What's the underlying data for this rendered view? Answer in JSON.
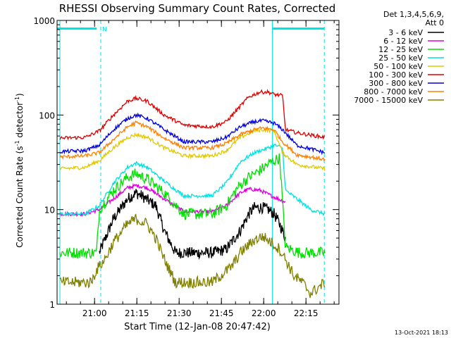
{
  "chart_data": {
    "type": "line",
    "title": "RHESSI Observing Summary Count Rates, Corrected",
    "xlabel": "Start Time (12-Jan-08 20:47:42)",
    "ylabel_main": "Corrected Count Rate (s",
    "ylabel_sup1": "-1",
    "ylabel_mid": " detector",
    "ylabel_sup2": "-1",
    "ylabel_end": ")",
    "y_scale": "log",
    "ylim": [
      1,
      1000
    ],
    "xlim_minutes": [
      0,
      100
    ],
    "x_ticks": [
      {
        "t": 13.3,
        "label": "21:00"
      },
      {
        "t": 28.3,
        "label": "21:15"
      },
      {
        "t": 43.3,
        "label": "21:30"
      },
      {
        "t": 58.3,
        "label": "21:45"
      },
      {
        "t": 73.3,
        "label": "22:00"
      },
      {
        "t": 88.3,
        "label": "22:15"
      }
    ],
    "y_ticks": [
      {
        "v": 1,
        "label": "1"
      },
      {
        "v": 10,
        "label": "10"
      },
      {
        "v": 100,
        "label": "100"
      },
      {
        "v": 1000,
        "label": "1000"
      }
    ],
    "legend_header": [
      "Det 1,3,4,5,6,9,",
      "Att 0"
    ],
    "legend_position": "right",
    "night_marker": {
      "label": "N",
      "t_end": 15.5,
      "level": 820
    },
    "saa_marker": {
      "t_start": 76.4,
      "t_end": 94.8,
      "level": 820
    },
    "vertical_lines_dashed": [
      15.5,
      94.8
    ],
    "vertical_lines_solid": [
      1.0,
      76.4
    ],
    "series": [
      {
        "name": "3 - 6 keV",
        "color": "#000000",
        "x": [
          15,
          20,
          25,
          28,
          30,
          35,
          38,
          42,
          48,
          55,
          60,
          65,
          68,
          70,
          73,
          75,
          77,
          79,
          81
        ],
        "y": [
          3.5,
          8,
          13,
          15,
          14,
          11,
          6,
          3.5,
          3.5,
          3.5,
          3.8,
          6,
          9,
          10.5,
          10.5,
          10,
          9,
          7,
          5
        ]
      },
      {
        "name": "6 - 12 keV",
        "color": "#e000e0",
        "x": [
          1,
          10,
          15,
          20,
          25,
          28,
          32,
          38,
          45,
          55,
          60,
          65,
          68,
          72,
          76,
          81
        ],
        "y": [
          9,
          9,
          10,
          13,
          17,
          18,
          17,
          13,
          9.5,
          9.5,
          11,
          15,
          16.5,
          16,
          14,
          12
        ]
      },
      {
        "name": "12 - 25 keV",
        "color": "#00e000",
        "x": [
          1,
          14,
          15,
          20,
          25,
          28,
          32,
          38,
          45,
          55,
          60,
          64,
          68,
          72,
          76,
          79,
          81,
          86,
          95
        ],
        "y": [
          3.5,
          3.5,
          10,
          16,
          22,
          24,
          21,
          15,
          9,
          9,
          11,
          17,
          22,
          26,
          32,
          35,
          4,
          3.5,
          3.5
        ]
      },
      {
        "name": "25 - 50 keV",
        "color": "#00e0e0",
        "x": [
          1,
          10,
          15,
          20,
          25,
          28,
          32,
          38,
          45,
          55,
          60,
          65,
          70,
          75,
          77,
          80,
          81,
          85,
          90,
          95
        ],
        "y": [
          9,
          9,
          11,
          19,
          28,
          31,
          28,
          20,
          14,
          14,
          19,
          32,
          40,
          45,
          48,
          45,
          16,
          13,
          10,
          9
        ]
      },
      {
        "name": "50 - 100 keV",
        "color": "#e0c800",
        "x": [
          1,
          10,
          15,
          20,
          25,
          28,
          32,
          38,
          45,
          55,
          60,
          65,
          70,
          73,
          77,
          80,
          85,
          95
        ],
        "y": [
          27,
          28,
          33,
          45,
          58,
          62,
          58,
          45,
          37,
          37,
          42,
          58,
          68,
          70,
          68,
          40,
          30,
          27
        ]
      },
      {
        "name": "100 - 300 keV",
        "color": "#e00000",
        "x": [
          1,
          10,
          15,
          20,
          25,
          28,
          32,
          38,
          45,
          55,
          60,
          64,
          68,
          72,
          75,
          77,
          80,
          81,
          85,
          95
        ],
        "y": [
          57,
          58,
          68,
          100,
          140,
          150,
          140,
          100,
          78,
          75,
          85,
          115,
          155,
          175,
          175,
          165,
          160,
          70,
          65,
          58
        ]
      },
      {
        "name": "300 - 800 keV",
        "color": "#0000e0",
        "x": [
          1,
          10,
          15,
          20,
          25,
          28,
          32,
          38,
          45,
          55,
          60,
          65,
          70,
          73,
          77,
          80,
          85,
          95
        ],
        "y": [
          41,
          42,
          48,
          70,
          92,
          100,
          92,
          70,
          52,
          52,
          58,
          75,
          85,
          87,
          82,
          70,
          48,
          40
        ]
      },
      {
        "name": "800 - 7000 keV",
        "color": "#ff8000",
        "x": [
          1,
          10,
          15,
          20,
          25,
          28,
          32,
          38,
          45,
          55,
          60,
          65,
          70,
          73,
          77,
          80,
          85,
          95
        ],
        "y": [
          36,
          37,
          40,
          55,
          75,
          83,
          75,
          57,
          45,
          45,
          50,
          62,
          70,
          73,
          70,
          52,
          38,
          34
        ]
      },
      {
        "name": "7000 - 15000 keV",
        "color": "#808000",
        "x": [
          1,
          12,
          14,
          17,
          20,
          25,
          28,
          32,
          35,
          38,
          42,
          48,
          55,
          62,
          65,
          70,
          73,
          76,
          79,
          81,
          84,
          87,
          90,
          95
        ],
        "y": [
          1.7,
          1.7,
          2.3,
          3.0,
          4.5,
          7,
          8,
          7,
          5,
          3,
          1.7,
          1.7,
          1.7,
          2.5,
          3.5,
          4.8,
          5.2,
          4.5,
          3.8,
          3.0,
          2.0,
          1.7,
          1.3,
          1.7
        ]
      }
    ],
    "footer_date": "13-Oct-2021 18:13"
  }
}
